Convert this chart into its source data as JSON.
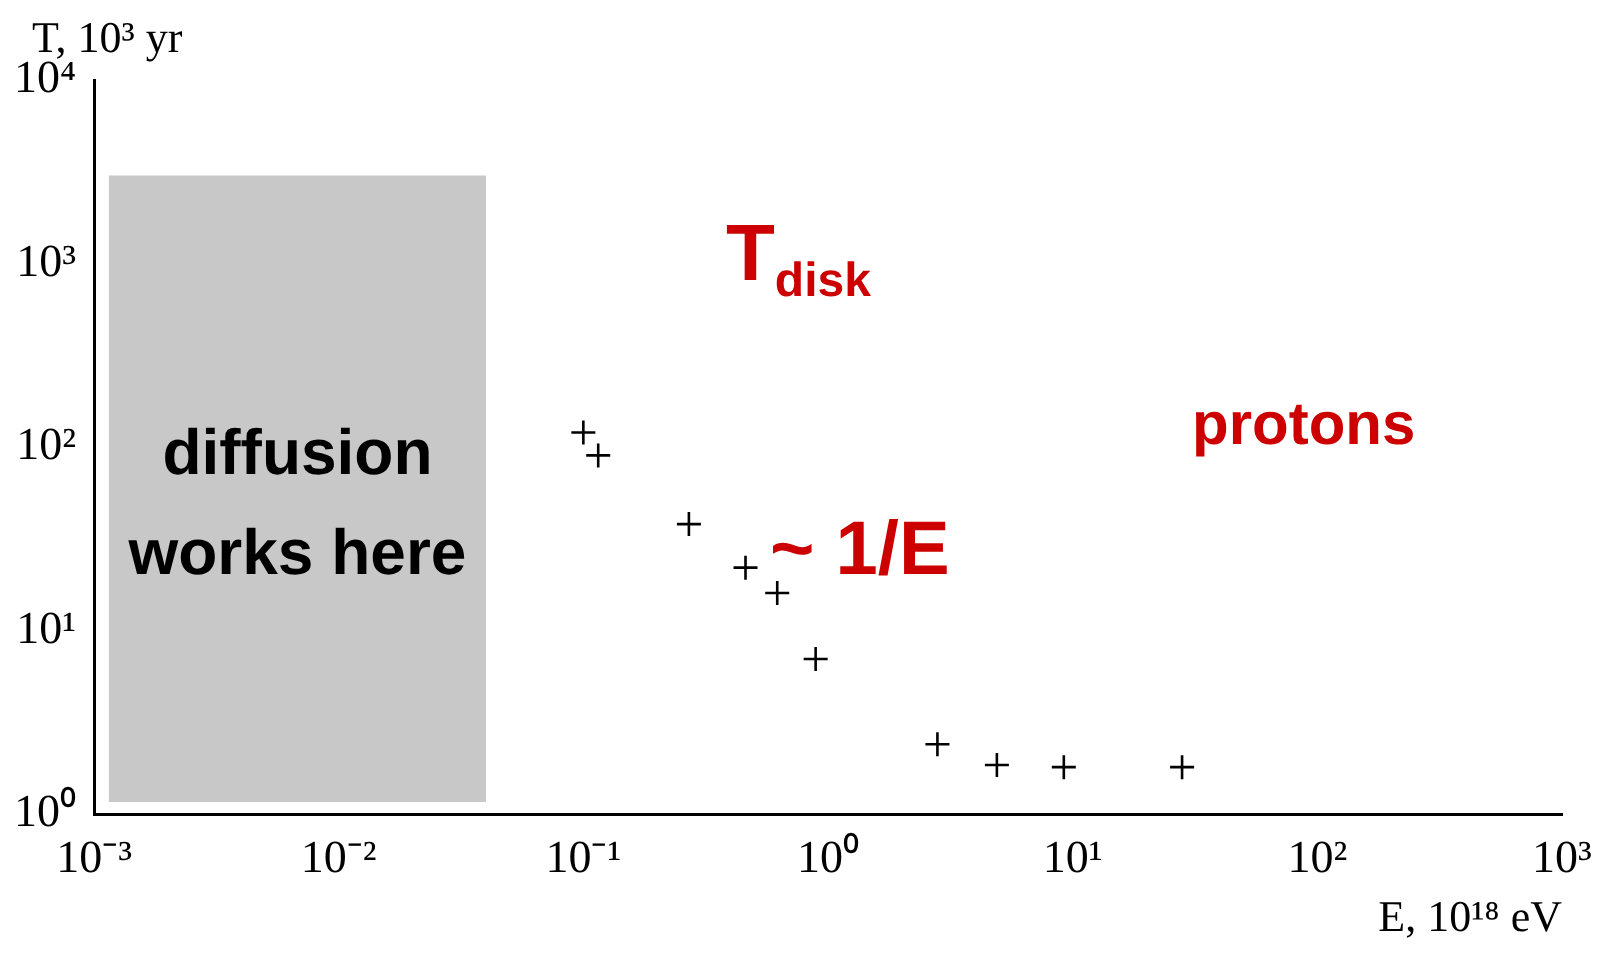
{
  "chart_data": {
    "type": "scatter",
    "xlabel": "E, 10¹⁸ eV",
    "ylabel": "T, 10³ yr",
    "x": [
      0.1,
      0.115,
      0.27,
      0.46,
      0.62,
      0.89,
      2.8,
      4.9,
      9.2,
      28
    ],
    "series": [
      {
        "color": "#000000",
        "values": [
          120,
          90,
          38,
          22,
          16,
          7,
          2.4,
          1.85,
          1.8,
          1.8
        ]
      }
    ],
    "marker": "cross",
    "log": "xy",
    "grid": false,
    "xlim": [
      0.001,
      1000
    ],
    "ylim": [
      1,
      10000
    ],
    "xticks": [
      {
        "value": 0.001,
        "label": "10⁻³"
      },
      {
        "value": 0.01,
        "label": "10⁻²"
      },
      {
        "value": 0.1,
        "label": "10⁻¹"
      },
      {
        "value": 1,
        "label": "10⁰"
      },
      {
        "value": 10,
        "label": "10¹"
      },
      {
        "value": 100,
        "label": "10²"
      },
      {
        "value": 1000,
        "label": "10³"
      }
    ],
    "yticks": [
      {
        "value": 1,
        "label": "10⁰"
      },
      {
        "value": 10,
        "label": "10¹"
      },
      {
        "value": 100,
        "label": "10²"
      },
      {
        "value": 1000,
        "label": "10³"
      },
      {
        "value": 10000,
        "label": "10⁴"
      }
    ],
    "bands": [
      {
        "axis": "x",
        "from": 0.00115,
        "to": 0.04,
        "label": "diffusion works here",
        "color": "#c8c8c8"
      }
    ],
    "annotations": [
      "T$_{disk}$",
      "~ 1/E",
      "protons"
    ]
  }
}
